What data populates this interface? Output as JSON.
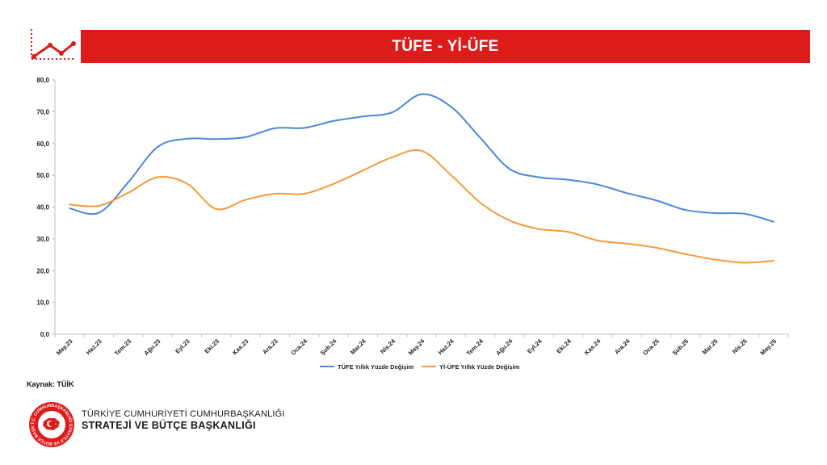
{
  "title": "TÜFE - Yİ-ÜFE",
  "source": "Kaynak: TÜİK",
  "footer": {
    "line1": "TÜRKİYE CUMHURİYETİ CUMHURBAŞKANLIĞI",
    "line2": "STRATEJİ VE BÜTÇE BAŞKANLIĞI",
    "logo_ring_text": "T.C. CUMHURBAŞKANLIĞI STRATEJİ VE BÜTÇE BAŞKANLIĞI"
  },
  "colors": {
    "accent": "#dd1c1a",
    "tufe": "#4a89dc",
    "yiufe": "#f59a3c",
    "axis": "#bfbfbf"
  },
  "chart_data": {
    "type": "line",
    "title": "TÜFE - Yİ-ÜFE",
    "xlabel": "",
    "ylabel": "",
    "ylim": [
      0,
      80
    ],
    "yticks": [
      0,
      10,
      20,
      30,
      40,
      50,
      60,
      70,
      80
    ],
    "ytick_labels": [
      "0,0",
      "10,0",
      "20,0",
      "30,0",
      "40,0",
      "50,0",
      "60,0",
      "70,0",
      "80,0"
    ],
    "grid": false,
    "legend": "bottom",
    "categories": [
      "May.23",
      "Haz.23",
      "Tem.23",
      "Ağu.23",
      "Eyl.23",
      "Eki.23",
      "Kas.23",
      "Ara.23",
      "Oca.24",
      "Şub.24",
      "Mar.24",
      "Nis.24",
      "May.24",
      "Haz.24",
      "Tem.24",
      "Ağu.24",
      "Eyl.24",
      "Eki.24",
      "Kas.24",
      "Ara.24",
      "Oca.25",
      "Şub.25",
      "Mar.25",
      "Nis.25",
      "May.25"
    ],
    "series": [
      {
        "name": "TÜFE Yıllık Yüzde Değişim",
        "values": [
          39.6,
          38.2,
          47.8,
          58.9,
          61.5,
          61.4,
          62.0,
          64.8,
          64.9,
          67.1,
          68.5,
          69.8,
          75.5,
          71.6,
          61.8,
          52.0,
          49.4,
          48.6,
          47.1,
          44.4,
          42.1,
          39.1,
          38.1,
          37.9,
          35.4
        ]
      },
      {
        "name": "Yİ-ÜFE Yıllık Yüzde Değişim",
        "values": [
          40.8,
          40.4,
          44.5,
          49.4,
          47.4,
          39.4,
          42.3,
          44.2,
          44.2,
          47.3,
          51.5,
          55.7,
          57.7,
          50.1,
          41.4,
          35.8,
          33.1,
          32.2,
          29.5,
          28.5,
          27.2,
          25.2,
          23.5,
          22.5,
          23.1
        ]
      }
    ]
  }
}
